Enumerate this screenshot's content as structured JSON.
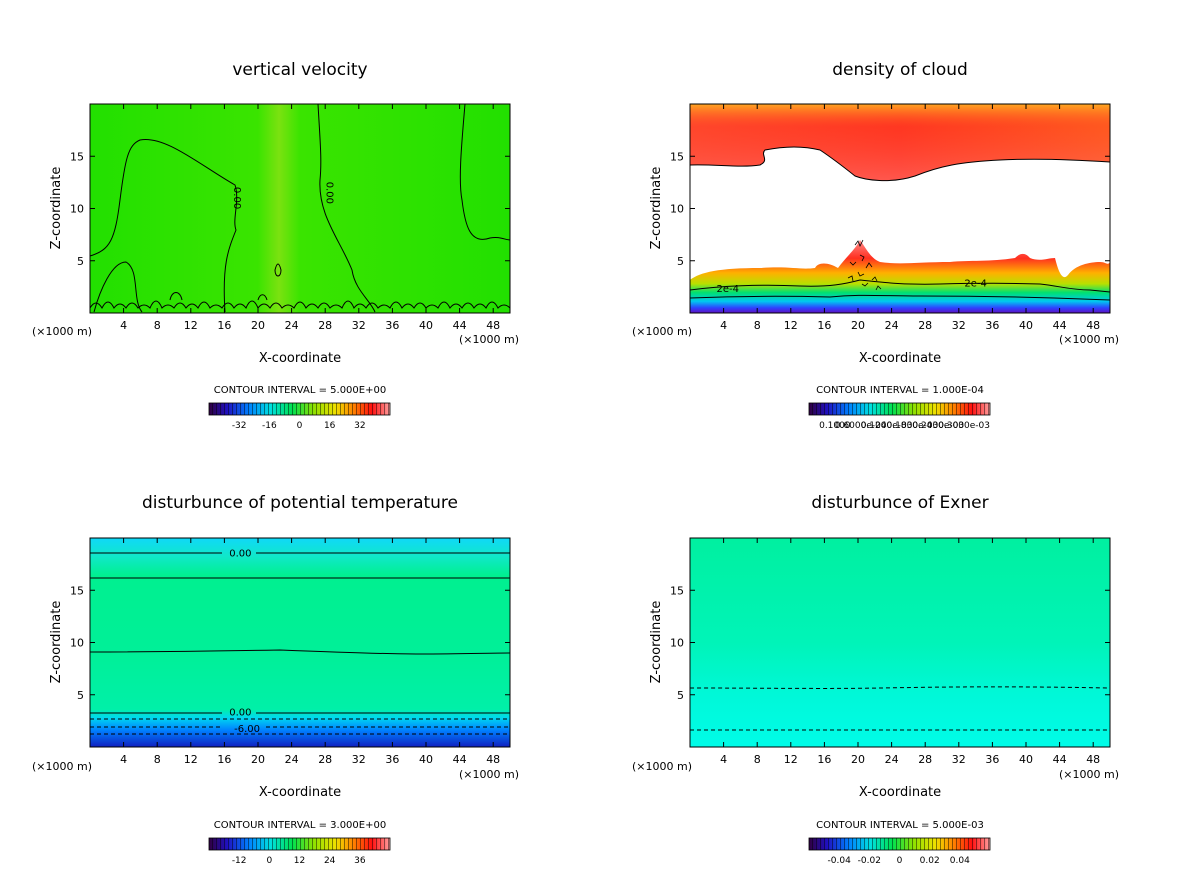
{
  "chart_data": [
    {
      "type": "heatmap",
      "id": "vv",
      "title": "vertical velocity",
      "xlabel": "X-coordinate",
      "ylabel": "Z-coordinate",
      "xunit": "(×1000 m)",
      "xlim": [
        0,
        50
      ],
      "ylim": [
        0,
        20
      ],
      "xticks": [
        4,
        8,
        12,
        16,
        20,
        24,
        28,
        32,
        36,
        40,
        44,
        48
      ],
      "yticks": [
        5,
        10,
        15
      ],
      "contour_interval": "CONTOUR INTERVAL = 5.000E+00",
      "colorbar_ticks": [
        "-32",
        "-16",
        "0",
        "16",
        "32"
      ],
      "contour_labels": [
        {
          "text": "0.00",
          "x": 17.5,
          "y": 11.0
        },
        {
          "text": "0.00",
          "x": 28.5,
          "y": 11.5
        }
      ]
    },
    {
      "type": "heatmap",
      "id": "dc",
      "title": "density of cloud",
      "xlabel": "X-coordinate",
      "ylabel": "Z-coordinate",
      "xunit": "(×1000 m)",
      "xlim": [
        0,
        50
      ],
      "ylim": [
        0,
        20
      ],
      "xticks": [
        4,
        8,
        12,
        16,
        20,
        24,
        28,
        32,
        36,
        40,
        44,
        48
      ],
      "yticks": [
        5,
        10,
        15
      ],
      "contour_interval": "CONTOUR INTERVAL = 1.000E-04",
      "colorbar_ticks": [
        "0.1000",
        "0.6000e-04",
        "0.1200e-03",
        "0.1800e-03",
        "0.2400e-03",
        "0.3000e-03"
      ],
      "contour_labels": [
        {
          "text": "2e-4",
          "x": 4.5,
          "y": 2.3
        },
        {
          "text": "2e-4",
          "x": 34,
          "y": 2.8
        }
      ]
    },
    {
      "type": "heatmap",
      "id": "pt",
      "title": "disturbunce of potential temperature",
      "xlabel": "X-coordinate",
      "ylabel": "Z-coordinate",
      "xunit": "(×1000 m)",
      "xlim": [
        0,
        50
      ],
      "ylim": [
        0,
        20
      ],
      "xticks": [
        4,
        8,
        12,
        16,
        20,
        24,
        28,
        32,
        36,
        40,
        44,
        48
      ],
      "yticks": [
        5,
        10,
        15
      ],
      "contour_interval": "CONTOUR INTERVAL = 3.000E+00",
      "colorbar_ticks": [
        "-12",
        "0",
        "12",
        "24",
        "36"
      ],
      "contour_labels": [
        {
          "text": "0.00",
          "x": 17.9,
          "y": 18.5
        },
        {
          "text": "0.00",
          "x": 17.9,
          "y": 3.3
        },
        {
          "text": "-6.00",
          "x": 18.7,
          "y": 1.7
        }
      ]
    },
    {
      "type": "heatmap",
      "id": "ex",
      "title": "disturbunce of Exner",
      "xlabel": "X-coordinate",
      "ylabel": "Z-coordinate",
      "xunit": "(×1000 m)",
      "xlim": [
        0,
        50
      ],
      "ylim": [
        0,
        20
      ],
      "xticks": [
        4,
        8,
        12,
        16,
        20,
        24,
        28,
        32,
        36,
        40,
        44,
        48
      ],
      "yticks": [
        5,
        10,
        15
      ],
      "contour_interval": "CONTOUR INTERVAL = 5.000E-03",
      "colorbar_ticks": [
        "-0.04",
        "-0.02",
        "0",
        "0.02",
        "0.04"
      ],
      "contour_labels": []
    }
  ]
}
